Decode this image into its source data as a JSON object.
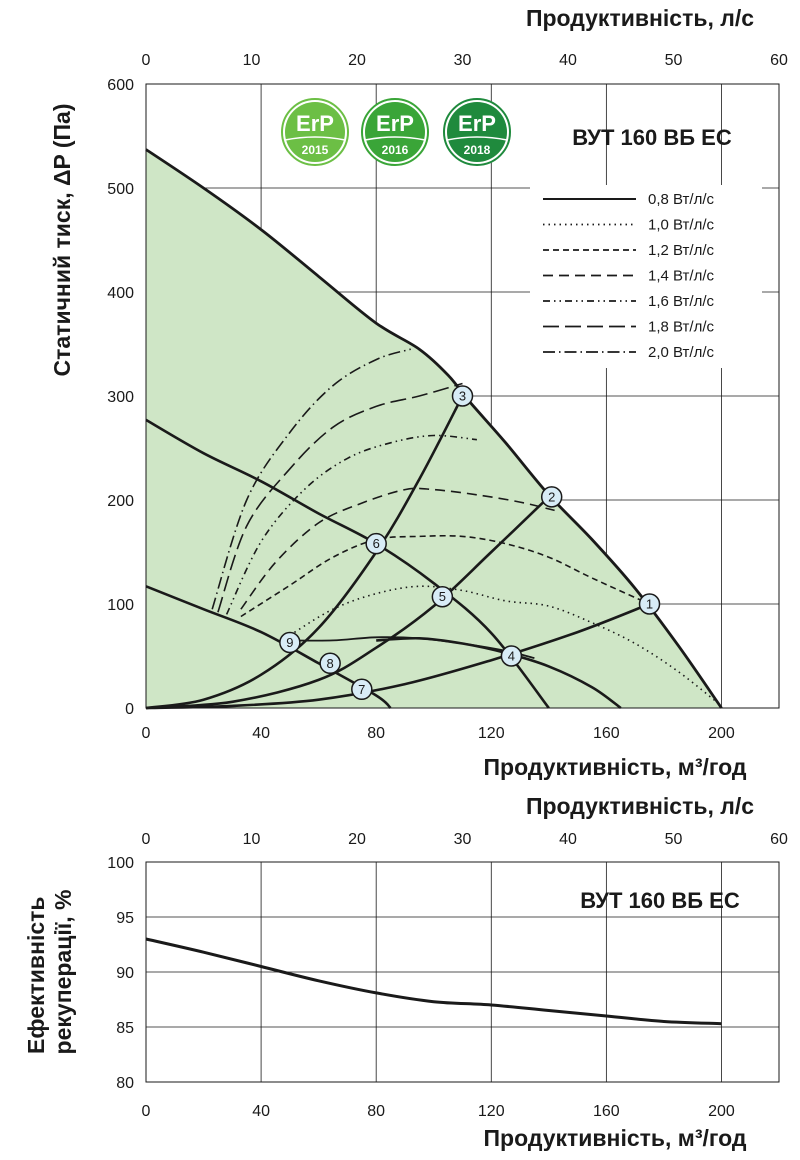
{
  "chart_data": [
    {
      "type": "line",
      "title": "ВУТ 160 ВБ ЕС",
      "xlabel": "Продуктивність, м³/год",
      "x2label": "Продуктивність, л/с",
      "ylabel": "Статичний тиск, ΔP (Па)",
      "xlim": [
        0,
        220
      ],
      "x2lim": [
        0,
        60
      ],
      "ylim": [
        0,
        600
      ],
      "xticks": [
        0,
        40,
        80,
        120,
        160,
        200
      ],
      "x2ticks": [
        0,
        10,
        20,
        30,
        40,
        50,
        60
      ],
      "yticks": [
        0,
        100,
        200,
        300,
        400,
        500,
        600
      ],
      "grid": true,
      "legend_position": "top-right",
      "badges": [
        {
          "label": "ErP",
          "year": "2015",
          "color": "#6cbf45"
        },
        {
          "label": "ErP",
          "year": "2016",
          "color": "#3aa538"
        },
        {
          "label": "ErP",
          "year": "2018",
          "color": "#1f8a3d"
        }
      ],
      "fan_curve": {
        "x": [
          0,
          20,
          40,
          60,
          80,
          95,
          105,
          112,
          125,
          140,
          155,
          170,
          185,
          200
        ],
        "y": [
          537,
          500,
          460,
          415,
          370,
          345,
          320,
          296,
          255,
          205,
          162,
          115,
          60,
          0
        ]
      },
      "system_curves": [
        {
          "label": "1",
          "x": [
            0,
            30,
            60,
            90,
            120,
            150,
            175
          ],
          "y": [
            0,
            2,
            8,
            23,
            46,
            73,
            100
          ]
        },
        {
          "label": "2",
          "x": [
            0,
            30,
            60,
            80,
            100,
            120,
            140
          ],
          "y": [
            0,
            6,
            27,
            58,
            98,
            150,
            203
          ]
        },
        {
          "label": "3",
          "x": [
            0,
            20,
            40,
            60,
            80,
            95,
            110
          ],
          "y": [
            0,
            8,
            32,
            77,
            150,
            220,
            300
          ]
        }
      ],
      "throttle_curves": [
        {
          "x": [
            0,
            20,
            40,
            60,
            80,
            100,
            120,
            140
          ],
          "y": [
            277,
            245,
            218,
            187,
            158,
            120,
            72,
            0
          ]
        },
        {
          "x": [
            0,
            20,
            40,
            60,
            80,
            85
          ],
          "y": [
            117,
            95,
            73,
            43,
            12,
            0
          ]
        },
        {
          "x": [
            80,
            95,
            110,
            125,
            140,
            155,
            165
          ],
          "y": [
            65,
            67,
            62,
            53,
            40,
            20,
            0
          ]
        }
      ],
      "points": [
        {
          "label": "1",
          "x": 175,
          "y": 100
        },
        {
          "label": "2",
          "x": 141,
          "y": 203
        },
        {
          "label": "3",
          "x": 110,
          "y": 300
        },
        {
          "label": "4",
          "x": 127,
          "y": 50
        },
        {
          "label": "5",
          "x": 103,
          "y": 107
        },
        {
          "label": "6",
          "x": 80,
          "y": 158
        },
        {
          "label": "7",
          "x": 75,
          "y": 18
        },
        {
          "label": "8",
          "x": 64,
          "y": 43
        },
        {
          "label": "9",
          "x": 50,
          "y": 63
        }
      ],
      "series": [
        {
          "name": "0,8 Вт/л/с",
          "dash": "solid",
          "x": [
            50,
            65,
            80,
            95,
            110,
            125,
            135
          ],
          "y": [
            65,
            65,
            68,
            67,
            62,
            55,
            48
          ]
        },
        {
          "name": "1,0 Вт/л/с",
          "dash": "dotted",
          "x": [
            50,
            65,
            80,
            95,
            110,
            125,
            140,
            155,
            170,
            185,
            200
          ],
          "y": [
            70,
            95,
            110,
            117,
            113,
            103,
            98,
            82,
            62,
            35,
            2
          ]
        },
        {
          "name": "1,2 Вт/л/с",
          "dash": "short-dash",
          "x": [
            33,
            50,
            65,
            80,
            95,
            110,
            125,
            140,
            155,
            175
          ],
          "y": [
            88,
            118,
            145,
            162,
            165,
            165,
            158,
            145,
            125,
            100
          ]
        },
        {
          "name": "1,4 Вт/л/с",
          "dash": "dash",
          "x": [
            33,
            45,
            60,
            75,
            90,
            100,
            115,
            130,
            142
          ],
          "y": [
            95,
            140,
            178,
            197,
            210,
            210,
            205,
            198,
            190
          ]
        },
        {
          "name": "1,6 Вт/л/с",
          "dash": "dash-dot-dot",
          "x": [
            28,
            40,
            55,
            70,
            85,
            100,
            115
          ],
          "y": [
            90,
            160,
            210,
            240,
            255,
            262,
            258
          ]
        },
        {
          "name": "1,8 Вт/л/с",
          "dash": "long-dash",
          "x": [
            25,
            35,
            50,
            65,
            80,
            95,
            110
          ],
          "y": [
            92,
            175,
            230,
            270,
            290,
            300,
            312
          ]
        },
        {
          "name": "2,0 Вт/л/с",
          "dash": "dash-dot",
          "x": [
            23,
            35,
            50,
            65,
            80,
            92
          ],
          "y": [
            95,
            200,
            265,
            310,
            335,
            345
          ]
        }
      ]
    },
    {
      "type": "line",
      "title": "ВУТ 160 ВБ ЕС",
      "xlabel": "Продуктивність, м³/год",
      "x2label": "Продуктивність, л/с",
      "ylabel": "Ефективність рекуперації, %",
      "xlim": [
        0,
        220
      ],
      "x2lim": [
        0,
        60
      ],
      "ylim": [
        80,
        100
      ],
      "xticks": [
        0,
        40,
        80,
        120,
        160,
        200
      ],
      "x2ticks": [
        0,
        10,
        20,
        30,
        40,
        50,
        60
      ],
      "yticks": [
        80,
        85,
        90,
        95,
        100
      ],
      "grid": true,
      "series": [
        {
          "x": [
            0,
            20,
            40,
            60,
            80,
            100,
            120,
            140,
            160,
            180,
            200
          ],
          "y": [
            93,
            91.8,
            90.5,
            89.2,
            88.1,
            87.3,
            87,
            86.5,
            86,
            85.5,
            85.3
          ]
        }
      ]
    }
  ]
}
